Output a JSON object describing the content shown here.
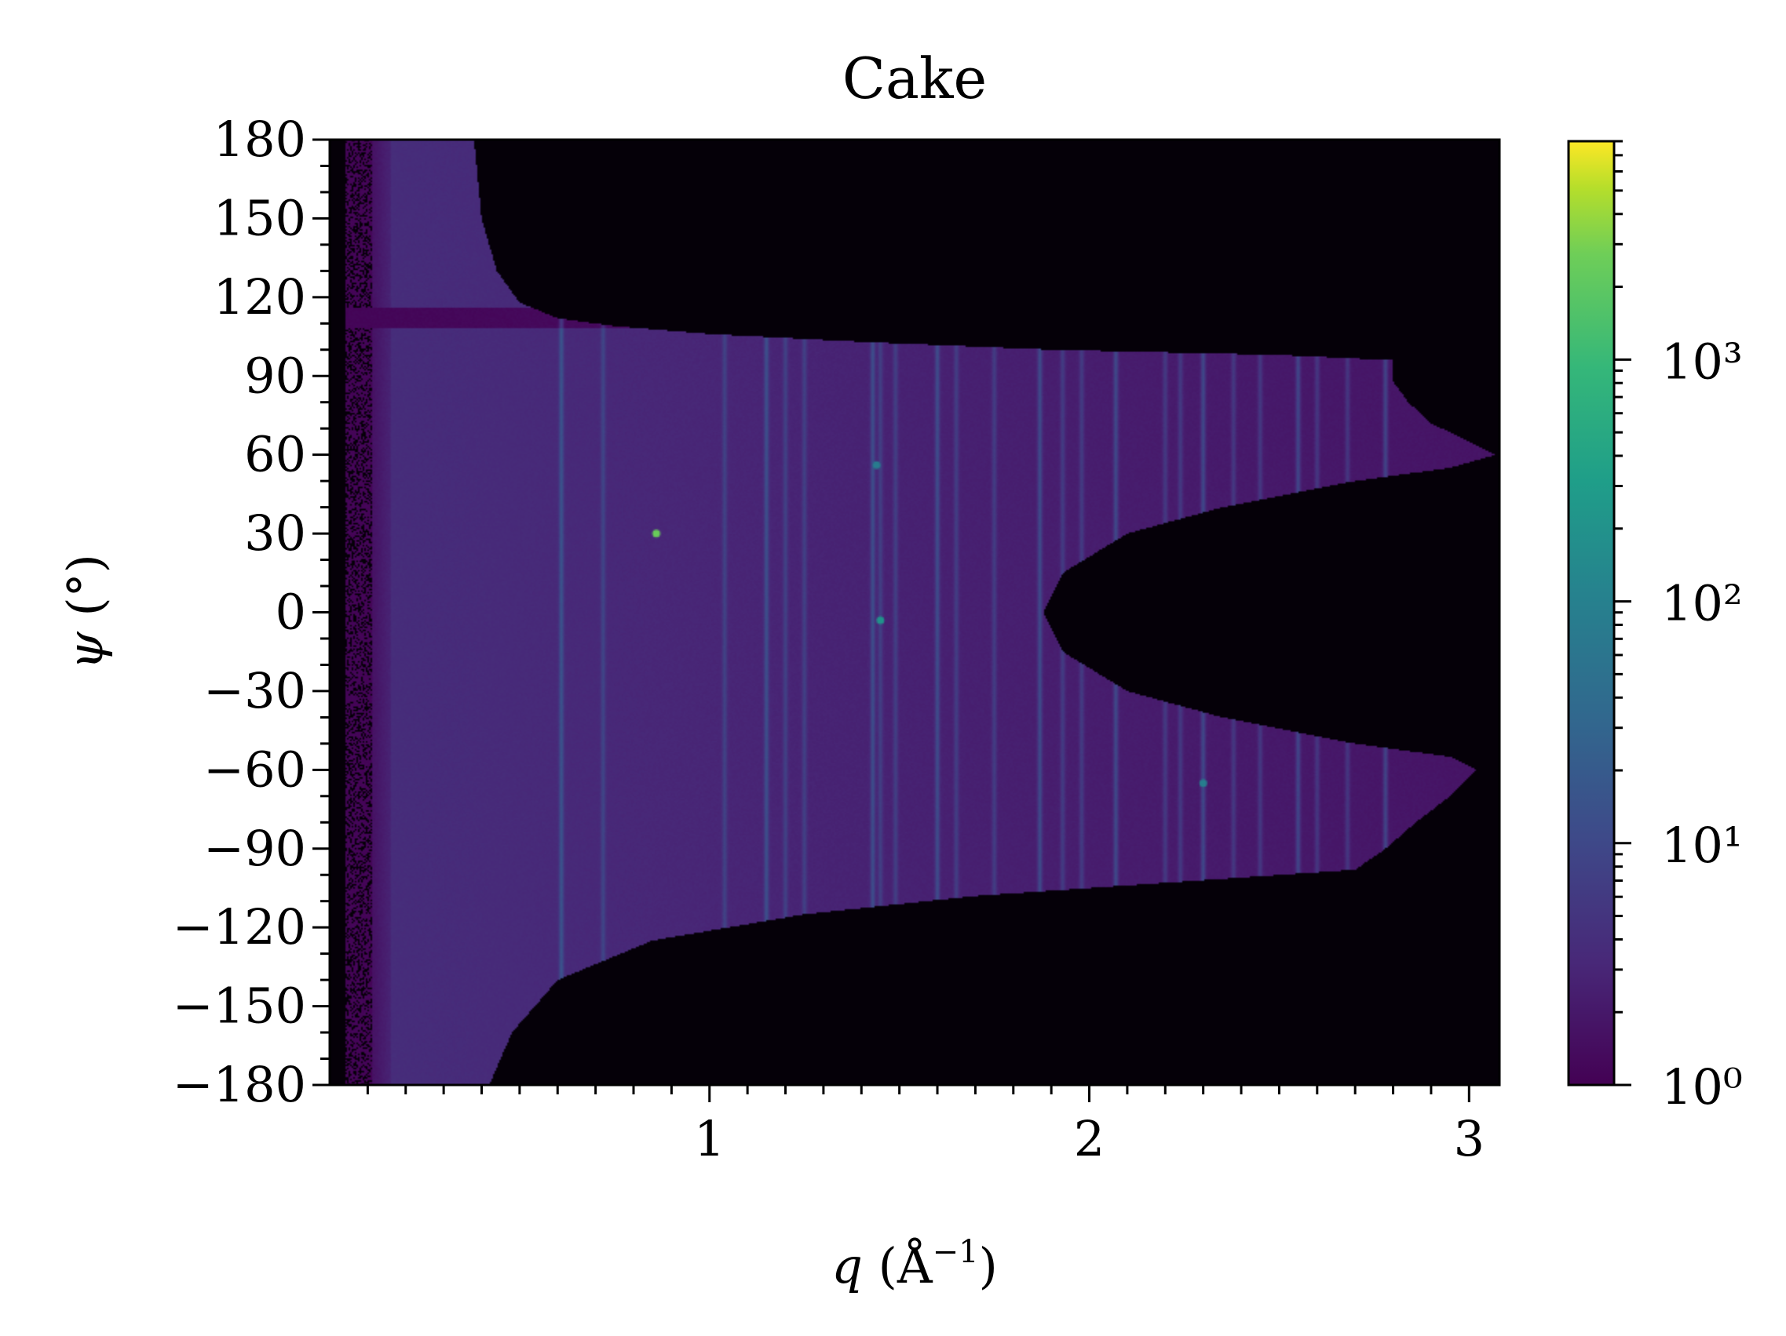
{
  "chart_data": {
    "type": "heatmap",
    "title": "Cake",
    "xlabel": "q (Å⁻¹)",
    "ylabel": "ψ (°)",
    "xlim": [
      0,
      3.08
    ],
    "ylim": [
      -180,
      180
    ],
    "x_ticks": [
      1,
      2,
      3
    ],
    "x_tick_labels": [
      "1",
      "2",
      "3"
    ],
    "y_ticks": [
      180,
      150,
      120,
      90,
      60,
      30,
      0,
      -30,
      -60,
      -90,
      -120,
      -150,
      -180
    ],
    "y_tick_labels": [
      "180",
      "150",
      "120",
      "90",
      "60",
      "30",
      "0",
      "−30",
      "−60",
      "−90",
      "−120",
      "−150",
      "−180"
    ],
    "colormap": "viridis",
    "colorbar": {
      "scale": "log",
      "range": [
        1,
        8000
      ],
      "ticks": [
        1,
        10,
        100,
        1000
      ],
      "tick_labels": [
        "10⁰",
        "10¹",
        "10²",
        "10³"
      ]
    },
    "masked_color": "#050008",
    "background_intensity": 4,
    "diffraction_rings_q": [
      0.61,
      0.72,
      1.04,
      1.15,
      1.2,
      1.25,
      1.43,
      1.45,
      1.49,
      1.6,
      1.65,
      1.75,
      1.87,
      1.93,
      1.98,
      2.07,
      2.2,
      2.24,
      2.3,
      2.38,
      2.45,
      2.55,
      2.6,
      2.68,
      2.78
    ],
    "bright_spots": [
      {
        "q": 0.86,
        "psi": 30,
        "intensity": 2500
      },
      {
        "q": 1.45,
        "psi": -3,
        "intensity": 200
      },
      {
        "q": 1.44,
        "psi": 56,
        "intensity": 80
      },
      {
        "q": 2.3,
        "psi": -65,
        "intensity": 90
      }
    ],
    "colors": {
      "viridis_low": "#440154",
      "viridis_mid_low": "#3b528b",
      "viridis_mid": "#21918c",
      "viridis_mid_high": "#5ec962",
      "viridis_high": "#fde725"
    }
  }
}
